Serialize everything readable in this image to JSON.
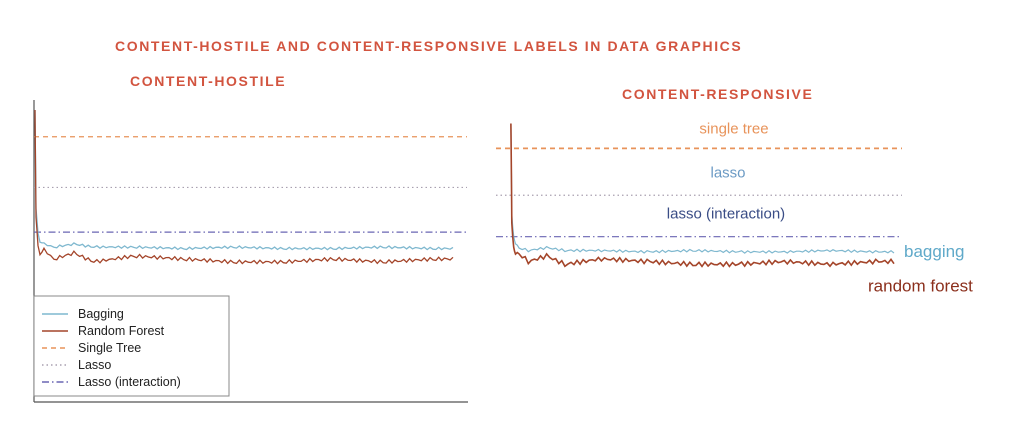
{
  "page": {
    "main_title": "CONTENT-HOSTILE AND CONTENT-RESPONSIVE LABELS IN DATA GRAPHICS",
    "left_title": "CONTENT-HOSTILE",
    "right_title": "CONTENT-RESPONSIVE"
  },
  "colors": {
    "heading": "#d2543f",
    "bagging": "#7fb8cf",
    "random_forest": "#a4452a",
    "single_tree": "#e8935a",
    "lasso": "#a9a0b0",
    "lasso_interaction": "#6a66b3",
    "axis": "#555555"
  },
  "chart_data": [
    {
      "name": "content-hostile",
      "type": "line",
      "xlabel": "",
      "ylabel": "",
      "ylim": [
        0,
        1
      ],
      "legend_placement": "bottom-left",
      "grid": false,
      "legend": [
        "Bagging",
        "Random Forest",
        "Single Tree",
        "Lasso",
        "Lasso (interaction)"
      ],
      "reference_lines": [
        {
          "name": "Single Tree",
          "y": 0.89,
          "style": "dashed"
        },
        {
          "name": "Lasso",
          "y": 0.72,
          "style": "dotted"
        },
        {
          "name": "Lasso (interaction)",
          "y": 0.57,
          "style": "dashdot"
        }
      ],
      "series": [
        {
          "name": "Bagging",
          "x": [
            1,
            2,
            4,
            6,
            10,
            20,
            40,
            60,
            100,
            150,
            200,
            250,
            300,
            350,
            400,
            420
          ],
          "y": [
            0.98,
            0.65,
            0.57,
            0.54,
            0.53,
            0.52,
            0.53,
            0.52,
            0.52,
            0.515,
            0.52,
            0.515,
            0.515,
            0.52,
            0.515,
            0.515
          ]
        },
        {
          "name": "Random Forest",
          "x": [
            1,
            2,
            4,
            6,
            10,
            20,
            40,
            60,
            100,
            150,
            200,
            250,
            300,
            350,
            400,
            420
          ],
          "y": [
            0.98,
            0.62,
            0.53,
            0.5,
            0.51,
            0.48,
            0.5,
            0.47,
            0.49,
            0.48,
            0.47,
            0.47,
            0.48,
            0.47,
            0.48,
            0.48
          ]
        }
      ]
    },
    {
      "name": "content-responsive",
      "type": "line",
      "xlabel": "",
      "ylabel": "",
      "ylim": [
        0,
        1
      ],
      "grid": false,
      "labels": [
        "single tree",
        "lasso",
        "lasso (interaction)",
        "bagging",
        "random forest"
      ],
      "reference_lines": [
        {
          "name": "single tree",
          "y": 0.89,
          "style": "dashed"
        },
        {
          "name": "lasso",
          "y": 0.72,
          "style": "dotted"
        },
        {
          "name": "lasso (interaction)",
          "y": 0.57,
          "style": "dashdot"
        }
      ],
      "series": [
        {
          "name": "bagging",
          "x": [
            1,
            2,
            4,
            6,
            10,
            20,
            40,
            60,
            100,
            150,
            200,
            250,
            300,
            350,
            400,
            420
          ],
          "y": [
            0.98,
            0.65,
            0.57,
            0.54,
            0.53,
            0.52,
            0.53,
            0.52,
            0.52,
            0.515,
            0.52,
            0.515,
            0.515,
            0.52,
            0.515,
            0.515
          ]
        },
        {
          "name": "random forest",
          "x": [
            1,
            2,
            4,
            6,
            10,
            20,
            40,
            60,
            100,
            150,
            200,
            250,
            300,
            350,
            400,
            420
          ],
          "y": [
            0.98,
            0.62,
            0.53,
            0.5,
            0.51,
            0.48,
            0.5,
            0.47,
            0.49,
            0.48,
            0.47,
            0.47,
            0.48,
            0.47,
            0.48,
            0.48
          ]
        }
      ]
    }
  ]
}
